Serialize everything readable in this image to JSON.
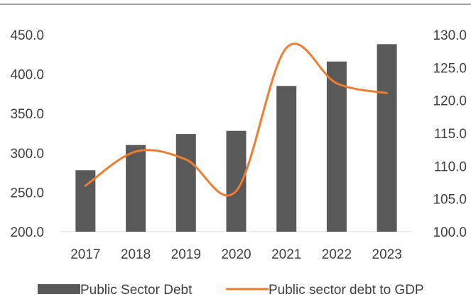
{
  "chart_data": {
    "type": "bar",
    "categories": [
      "2017",
      "2018",
      "2019",
      "2020",
      "2021",
      "2022",
      "2023"
    ],
    "series": [
      {
        "name": "Public Sector Debt",
        "type": "bar",
        "axis": "left",
        "color": "#595959",
        "values": [
          278,
          310,
          324,
          328,
          385,
          416,
          438
        ]
      },
      {
        "name": "Public sector debt to GDP",
        "type": "line",
        "axis": "right",
        "color": "#ED7D31",
        "smooth": true,
        "values": [
          107.0,
          112.2,
          111.0,
          106.2,
          128.0,
          122.6,
          121.1
        ]
      }
    ],
    "y_left": {
      "min": 200,
      "max": 450,
      "ticks": [
        "200.0",
        "250.0",
        "300.0",
        "350.0",
        "400.0",
        "450.0"
      ]
    },
    "y_right": {
      "min": 100,
      "max": 130,
      "ticks": [
        "100.0",
        "105.0",
        "110.0",
        "115.0",
        "120.0",
        "125.0",
        "130.0"
      ]
    },
    "title": "",
    "xlabel": "",
    "ylabel": "",
    "grid": false,
    "legend_position": "bottom"
  }
}
